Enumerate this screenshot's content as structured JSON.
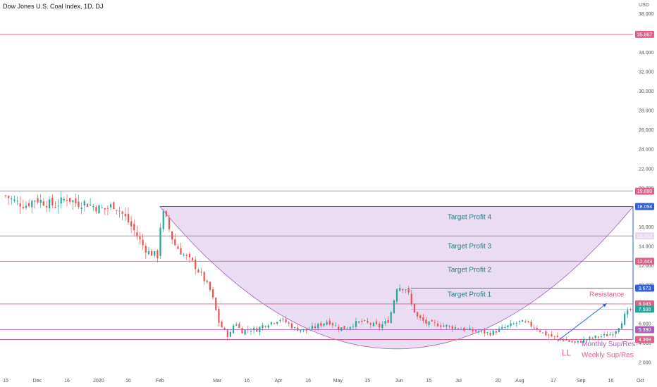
{
  "header": {
    "title": "Dow Jones U.S. Coal Index, 1D, DJ",
    "currency": "USD"
  },
  "colors": {
    "up": "#26a69a",
    "down": "#ef5350",
    "pink_line": "#e06088",
    "violet_line": "#b05fc0",
    "blue_line": "#3060e0",
    "cup_fill": "#e3d0ee",
    "cup_stroke": "#a45fb8",
    "axis_text": "#555555",
    "teal_text": "#2a7a80"
  },
  "chart_data": {
    "type": "candlestick",
    "y_axis": {
      "range": [
        1.5,
        38.4
      ],
      "ticks": [
        "2.000",
        "4.000",
        "6.000",
        "8.000",
        "10.000",
        "12.000",
        "14.000",
        "16.000",
        "18.000",
        "20.000",
        "22.000",
        "24.000",
        "26.000",
        "28.000",
        "30.000",
        "32.000",
        "34.000",
        "36.000",
        "38.000"
      ],
      "tick_values": [
        2,
        4,
        6,
        8,
        10,
        12,
        14,
        16,
        18,
        20,
        22,
        24,
        26,
        28,
        30,
        32,
        34,
        36,
        38
      ]
    },
    "x_axis": {
      "ticks": [
        "15",
        "Dec",
        "16",
        "2020",
        "16",
        "Feb",
        "Mar",
        "16",
        "Apr",
        "16",
        "May",
        "15",
        "Jun",
        "15",
        "Jul",
        "20",
        "Aug",
        "17",
        "Sep",
        "16",
        "Oct"
      ],
      "tick_days": [
        0,
        16,
        31,
        47,
        62,
        78,
        107,
        122,
        138,
        153,
        168,
        183,
        199,
        214,
        229,
        249,
        260,
        277,
        291,
        306,
        321
      ]
    },
    "series_waypoints": {
      "days": [
        0,
        5,
        10,
        15,
        20,
        25,
        31,
        36,
        40,
        46,
        50,
        55,
        60,
        65,
        69,
        72,
        77,
        78,
        80,
        85,
        90,
        95,
        100,
        104,
        108,
        113,
        116,
        119,
        123,
        127,
        130,
        135,
        139,
        143,
        146,
        152,
        157,
        163,
        168,
        172,
        176,
        180,
        184,
        189,
        194,
        198,
        203,
        205,
        208,
        211,
        213,
        216,
        222,
        230,
        238,
        245,
        250,
        255,
        260,
        264,
        268,
        272,
        276,
        280,
        283,
        286,
        288,
        291,
        294,
        298,
        301,
        304,
        307,
        310,
        313,
        316
      ],
      "closes": [
        19.2,
        18.6,
        18.2,
        18.9,
        18.5,
        18.2,
        19.0,
        18.4,
        18.5,
        18.0,
        17.8,
        18.3,
        17.1,
        15.6,
        14.2,
        13.4,
        13.0,
        15.9,
        17.5,
        14.3,
        13.1,
        12.2,
        10.7,
        9.2,
        6.0,
        4.6,
        6.3,
        5.2,
        5.4,
        5.4,
        5.8,
        6.2,
        6.5,
        6.0,
        5.5,
        5.3,
        5.7,
        6.3,
        5.6,
        5.5,
        6.0,
        6.2,
        6.0,
        5.7,
        6.4,
        9.9,
        9.6,
        8.1,
        6.7,
        6.3,
        6.0,
        6.0,
        5.8,
        5.5,
        5.2,
        5.0,
        5.4,
        5.8,
        6.2,
        6.0,
        5.6,
        5.0,
        4.7,
        4.5,
        4.3,
        4.1,
        4.0,
        4.2,
        4.4,
        4.6,
        4.7,
        4.8,
        5.0,
        5.7,
        6.8,
        7.5
      ]
    },
    "candle_count": 215,
    "horizontal_levels": [
      {
        "value": 35.867,
        "label": "35.867",
        "color": "#e06088"
      },
      {
        "value": 19.69,
        "label": "19.690",
        "color": "#e06088"
      },
      {
        "value": 18.094,
        "label": "18.094",
        "color": "#3060e0"
      },
      {
        "value": 15.063,
        "label": "15.063",
        "color": "#b05fc0"
      },
      {
        "value": 12.443,
        "label": "12.443",
        "color": "#e06088"
      },
      {
        "value": 9.673,
        "label": "9.673",
        "color": "#3060e0"
      },
      {
        "value": 8.043,
        "label": "8.043",
        "color": "#e06088"
      },
      {
        "value": 7.5,
        "label": "7.500",
        "color": "#26a69a"
      },
      {
        "value": 5.39,
        "label": "5.390",
        "color": "#b05fc0"
      },
      {
        "value": 4.369,
        "label": "4.369",
        "color": "#e06088"
      }
    ],
    "cup_pattern": {
      "rim_value": 18.094,
      "bottom_value": 3.4,
      "start_day": 78,
      "end_day": 321
    },
    "zone_labels": [
      "Target Profit 4",
      "Target Profit 3",
      "Target Profit 2",
      "Target Profit 1"
    ],
    "annotations": {
      "resistance": "Resistance",
      "ll": "LL",
      "monthly": "Monthly Sup/Res",
      "weekly": "Weekly Sup/Res"
    },
    "grid": false
  }
}
